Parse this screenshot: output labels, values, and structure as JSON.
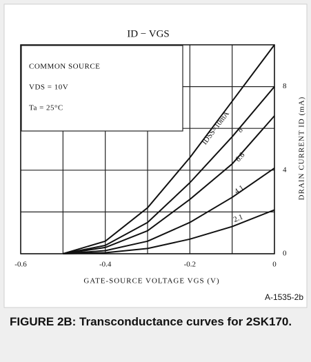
{
  "chart_data": {
    "type": "line",
    "title": "ID − VGS",
    "annotations": [
      "COMMON SOURCE",
      "VDS = 10V",
      "Ta = 25°C"
    ],
    "x_label": "GATE-SOURCE VOLTAGE VGS (V)",
    "y_label": "DRAIN CURRENT ID (mA)",
    "figure_id": "A-1535-2b",
    "caption": "FIGURE 2B: Transconductance curves for 2SK170.",
    "x": [
      -0.5,
      -0.4,
      -0.3,
      -0.2,
      -0.1,
      0
    ],
    "series": [
      {
        "name": "IDSS=10mA",
        "color": "#111111",
        "values": [
          0,
          0.6,
          2.2,
          4.6,
          7.3,
          10
        ]
      },
      {
        "name": "8",
        "color": "#111111",
        "values": [
          0,
          0.4,
          1.5,
          3.4,
          5.6,
          8
        ]
      },
      {
        "name": "6.6",
        "color": "#111111",
        "values": [
          0,
          0.3,
          1.1,
          2.6,
          4.3,
          6.6
        ]
      },
      {
        "name": "4.1",
        "color": "#111111",
        "values": [
          0,
          0.15,
          0.6,
          1.5,
          2.7,
          4.1
        ]
      },
      {
        "name": "2.1",
        "color": "#111111",
        "values": [
          0,
          0.05,
          0.25,
          0.7,
          1.3,
          2.1
        ]
      }
    ],
    "xlim": [
      -0.6,
      0
    ],
    "xticks": [
      -0.6,
      -0.4,
      -0.2,
      0
    ],
    "ylim": [
      0,
      10
    ],
    "yticks": [
      0,
      4,
      8
    ],
    "xgrid": [
      -0.5,
      -0.3,
      -0.1
    ],
    "ygrid": [
      2,
      6
    ],
    "grid": true
  }
}
